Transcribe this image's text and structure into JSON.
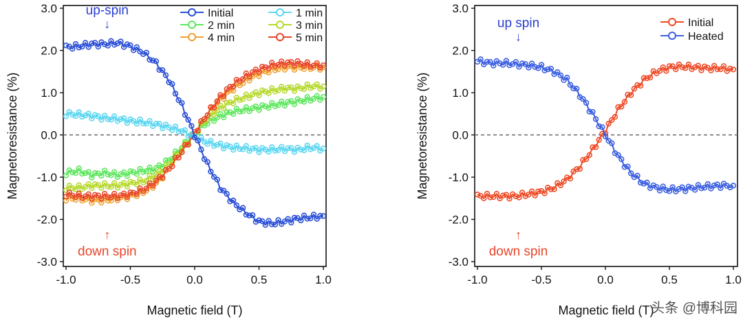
{
  "chart_data": [
    {
      "type": "line",
      "xlabel": "Magnetic field (T)",
      "ylabel": "Magnetoresistance (%)",
      "xlim": [
        -1.0,
        1.0
      ],
      "ylim": [
        -3.0,
        3.0
      ],
      "xticks": [
        "-1.0",
        "-0.5",
        "0.0",
        "0.5",
        "1.0"
      ],
      "yticks": [
        "3.0",
        "2.0",
        "1.0",
        "0.0",
        "-1.0",
        "-2.0",
        "-3.0"
      ],
      "ytick_values": [
        3,
        2,
        1,
        0,
        -1,
        -2,
        -3
      ],
      "xtick_values": [
        -1,
        -0.5,
        0,
        0.5,
        1
      ],
      "zero_line": true,
      "legend_placement": "top-right",
      "x": [
        -1.0,
        -0.9,
        -0.8,
        -0.7,
        -0.6,
        -0.5,
        -0.4,
        -0.3,
        -0.2,
        -0.1,
        0.0,
        0.1,
        0.2,
        0.3,
        0.4,
        0.5,
        0.6,
        0.7,
        0.8,
        0.9,
        1.0
      ],
      "series": [
        {
          "name": "2 min",
          "color": "#5ce65c",
          "values": [
            -0.9,
            -0.85,
            -0.95,
            -0.9,
            -0.95,
            -0.9,
            -0.85,
            -0.8,
            -0.6,
            -0.3,
            0.05,
            0.3,
            0.45,
            0.55,
            0.6,
            0.65,
            0.7,
            0.75,
            0.8,
            0.85,
            0.9
          ]
        },
        {
          "name": "3 min",
          "color": "#b5d82a",
          "values": [
            -1.25,
            -1.25,
            -1.2,
            -1.2,
            -1.2,
            -1.15,
            -1.1,
            -0.95,
            -0.7,
            -0.35,
            0.05,
            0.4,
            0.65,
            0.8,
            0.9,
            1.0,
            1.05,
            1.1,
            1.1,
            1.15,
            1.15
          ]
        },
        {
          "name": "4 min",
          "color": "#f0a030",
          "values": [
            -1.5,
            -1.5,
            -1.55,
            -1.55,
            -1.5,
            -1.45,
            -1.35,
            -1.15,
            -0.8,
            -0.4,
            0.05,
            0.5,
            0.85,
            1.1,
            1.3,
            1.45,
            1.55,
            1.6,
            1.6,
            1.6,
            1.6
          ]
        },
        {
          "name": "5 min",
          "color": "#e8452a",
          "values": [
            -1.4,
            -1.45,
            -1.45,
            -1.45,
            -1.45,
            -1.4,
            -1.3,
            -1.1,
            -0.8,
            -0.4,
            0.05,
            0.5,
            0.9,
            1.2,
            1.4,
            1.55,
            1.65,
            1.7,
            1.7,
            1.65,
            1.65
          ]
        },
        {
          "name": "1 min",
          "color": "#5ad6f0",
          "values": [
            0.5,
            0.48,
            0.45,
            0.4,
            0.38,
            0.33,
            0.3,
            0.25,
            0.18,
            0.1,
            -0.05,
            -0.18,
            -0.25,
            -0.3,
            -0.32,
            -0.35,
            -0.35,
            -0.33,
            -0.35,
            -0.3,
            -0.32
          ]
        },
        {
          "name": "Initial",
          "color": "#2a4fd6",
          "values": [
            2.08,
            2.1,
            2.15,
            2.15,
            2.18,
            2.1,
            1.95,
            1.7,
            1.3,
            0.7,
            0.0,
            -0.7,
            -1.25,
            -1.6,
            -1.85,
            -2.05,
            -2.1,
            -2.05,
            -1.98,
            -1.95,
            -1.92
          ]
        }
      ],
      "legend_order": [
        "Initial",
        "1 min",
        "2 min",
        "3 min",
        "4 min",
        "5 min"
      ],
      "annotations": [
        {
          "text": "up-spin",
          "arrow": "↓",
          "x": -0.68,
          "y": 2.85,
          "color": "#2a3fd0"
        },
        {
          "text": "down spin",
          "arrow": "↑",
          "x": -0.68,
          "y": -2.3,
          "color": "#e8452a"
        }
      ]
    },
    {
      "type": "line",
      "xlabel": "Magnetic field (T)",
      "ylabel": "Magnetoresistance (%)",
      "xlim": [
        -1.0,
        1.0
      ],
      "ylim": [
        -3.0,
        3.0
      ],
      "xticks": [
        "-1.0",
        "-0.5",
        "0.0",
        "0.5",
        "1.0"
      ],
      "yticks": [
        "3.0",
        "2.0",
        "1.0",
        "0.0",
        "-1.0",
        "-2.0",
        "-3.0"
      ],
      "ytick_values": [
        3,
        2,
        1,
        0,
        -1,
        -2,
        -3
      ],
      "xtick_values": [
        -1,
        -0.5,
        0,
        0.5,
        1
      ],
      "zero_line": true,
      "legend_placement": "top-right",
      "x": [
        -1.0,
        -0.9,
        -0.8,
        -0.7,
        -0.6,
        -0.5,
        -0.4,
        -0.3,
        -0.2,
        -0.1,
        0.0,
        0.1,
        0.2,
        0.3,
        0.4,
        0.5,
        0.6,
        0.7,
        0.8,
        0.9,
        1.0
      ],
      "series": [
        {
          "name": "Initial",
          "color": "#ee4a25",
          "values": [
            -1.45,
            -1.45,
            -1.45,
            -1.45,
            -1.4,
            -1.35,
            -1.25,
            -1.05,
            -0.75,
            -0.35,
            0.1,
            0.6,
            1.0,
            1.3,
            1.5,
            1.6,
            1.62,
            1.6,
            1.58,
            1.58,
            1.55
          ]
        },
        {
          "name": "Heated",
          "color": "#3a5ee0",
          "values": [
            1.75,
            1.7,
            1.7,
            1.68,
            1.65,
            1.6,
            1.5,
            1.3,
            0.95,
            0.5,
            0.0,
            -0.5,
            -0.9,
            -1.15,
            -1.25,
            -1.3,
            -1.28,
            -1.25,
            -1.22,
            -1.2,
            -1.2
          ]
        }
      ],
      "legend_order": [
        "Initial",
        "Heated"
      ],
      "annotations": [
        {
          "text": "up spin",
          "arrow": "↓",
          "x": -0.68,
          "y": 2.55,
          "color": "#2a3fd0"
        },
        {
          "text": "down spin",
          "arrow": "↑",
          "x": -0.68,
          "y": -2.3,
          "color": "#e8452a"
        }
      ]
    }
  ],
  "watermark": "头条 @博科园"
}
